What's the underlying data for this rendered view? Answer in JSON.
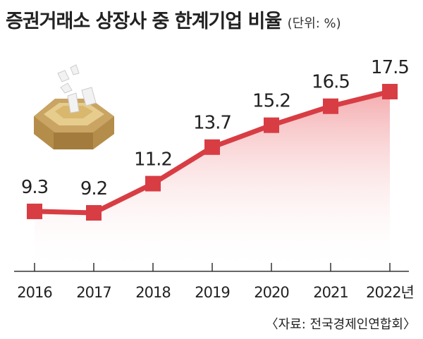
{
  "header": {
    "title": "증권거래소 상장사 중 한계기업 비율",
    "unit": "(단위: %)"
  },
  "source": "〈자료: 전국경제인연합회〉",
  "colors": {
    "line": "#d83d44",
    "fill": "#f3a3a6",
    "axis": "#333333",
    "text": "#222222"
  },
  "chart_data": {
    "type": "line",
    "categories": [
      "2016",
      "2017",
      "2018",
      "2019",
      "2020",
      "2021",
      "2022년"
    ],
    "values": [
      9.3,
      9.2,
      11.2,
      13.7,
      15.2,
      16.5,
      17.5
    ],
    "data_labels": [
      "9.3",
      "9.2",
      "11.2",
      "13.7",
      "15.2",
      "16.5",
      "17.5"
    ],
    "title": "증권거래소 상장사 중 한계기업 비율",
    "ylabel": "",
    "xlabel": "",
    "unit": "%",
    "grid": false,
    "legend": "none"
  }
}
